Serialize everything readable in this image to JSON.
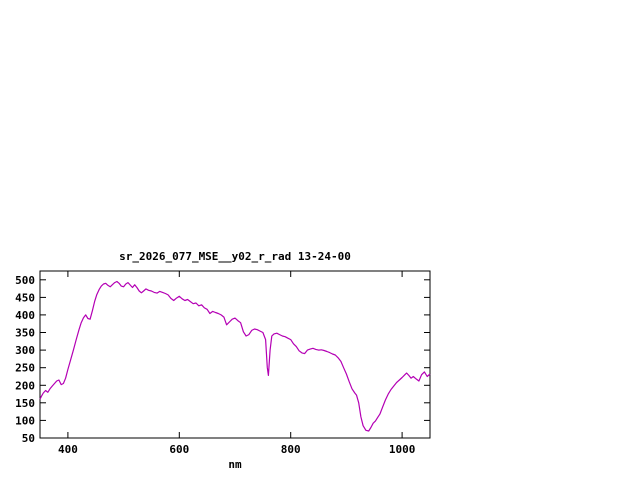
{
  "chart_data": {
    "type": "line",
    "title": "sr_2026_077_MSE__y02_r_rad 13-24-00",
    "xlabel": "nm",
    "ylabel": "",
    "xlim": [
      350,
      1050
    ],
    "ylim": [
      50,
      525
    ],
    "xticks": [
      400,
      600,
      800,
      1000
    ],
    "yticks": [
      50,
      100,
      150,
      200,
      250,
      300,
      350,
      400,
      450,
      500
    ],
    "grid": false,
    "legend": "none",
    "line_color": "#b400b4",
    "axis_color": "#000000",
    "points": [
      [
        350,
        160
      ],
      [
        353,
        170
      ],
      [
        356,
        178
      ],
      [
        360,
        185
      ],
      [
        364,
        180
      ],
      [
        368,
        190
      ],
      [
        372,
        198
      ],
      [
        376,
        205
      ],
      [
        380,
        212
      ],
      [
        384,
        215
      ],
      [
        388,
        202
      ],
      [
        392,
        205
      ],
      [
        396,
        220
      ],
      [
        400,
        245
      ],
      [
        405,
        272
      ],
      [
        410,
        300
      ],
      [
        415,
        330
      ],
      [
        420,
        358
      ],
      [
        424,
        378
      ],
      [
        428,
        392
      ],
      [
        432,
        400
      ],
      [
        436,
        390
      ],
      [
        440,
        388
      ],
      [
        444,
        412
      ],
      [
        448,
        438
      ],
      [
        452,
        458
      ],
      [
        456,
        472
      ],
      [
        460,
        482
      ],
      [
        464,
        488
      ],
      [
        468,
        490
      ],
      [
        472,
        484
      ],
      [
        476,
        480
      ],
      [
        480,
        486
      ],
      [
        484,
        492
      ],
      [
        488,
        495
      ],
      [
        492,
        490
      ],
      [
        496,
        482
      ],
      [
        500,
        480
      ],
      [
        504,
        488
      ],
      [
        508,
        492
      ],
      [
        512,
        485
      ],
      [
        516,
        478
      ],
      [
        520,
        486
      ],
      [
        524,
        478
      ],
      [
        528,
        468
      ],
      [
        532,
        463
      ],
      [
        536,
        468
      ],
      [
        540,
        474
      ],
      [
        545,
        470
      ],
      [
        550,
        468
      ],
      [
        555,
        464
      ],
      [
        560,
        462
      ],
      [
        565,
        467
      ],
      [
        570,
        464
      ],
      [
        575,
        461
      ],
      [
        580,
        457
      ],
      [
        585,
        447
      ],
      [
        590,
        441
      ],
      [
        595,
        448
      ],
      [
        600,
        453
      ],
      [
        605,
        446
      ],
      [
        610,
        441
      ],
      [
        615,
        444
      ],
      [
        620,
        438
      ],
      [
        625,
        432
      ],
      [
        630,
        434
      ],
      [
        635,
        426
      ],
      [
        640,
        429
      ],
      [
        645,
        420
      ],
      [
        650,
        416
      ],
      [
        655,
        404
      ],
      [
        660,
        410
      ],
      [
        665,
        407
      ],
      [
        670,
        404
      ],
      [
        675,
        400
      ],
      [
        680,
        394
      ],
      [
        685,
        372
      ],
      [
        690,
        380
      ],
      [
        695,
        388
      ],
      [
        700,
        391
      ],
      [
        705,
        384
      ],
      [
        710,
        378
      ],
      [
        715,
        352
      ],
      [
        720,
        340
      ],
      [
        725,
        344
      ],
      [
        730,
        356
      ],
      [
        735,
        360
      ],
      [
        740,
        358
      ],
      [
        745,
        354
      ],
      [
        750,
        350
      ],
      [
        755,
        330
      ],
      [
        758,
        250
      ],
      [
        760,
        228
      ],
      [
        763,
        300
      ],
      [
        766,
        340
      ],
      [
        770,
        346
      ],
      [
        775,
        348
      ],
      [
        780,
        344
      ],
      [
        785,
        340
      ],
      [
        790,
        338
      ],
      [
        795,
        334
      ],
      [
        800,
        330
      ],
      [
        805,
        318
      ],
      [
        810,
        310
      ],
      [
        815,
        298
      ],
      [
        820,
        292
      ],
      [
        825,
        290
      ],
      [
        830,
        300
      ],
      [
        835,
        303
      ],
      [
        840,
        305
      ],
      [
        845,
        302
      ],
      [
        850,
        300
      ],
      [
        855,
        301
      ],
      [
        860,
        299
      ],
      [
        865,
        296
      ],
      [
        870,
        293
      ],
      [
        875,
        289
      ],
      [
        880,
        286
      ],
      [
        885,
        278
      ],
      [
        890,
        268
      ],
      [
        895,
        250
      ],
      [
        900,
        232
      ],
      [
        905,
        210
      ],
      [
        910,
        190
      ],
      [
        915,
        178
      ],
      [
        918,
        172
      ],
      [
        922,
        150
      ],
      [
        926,
        110
      ],
      [
        930,
        85
      ],
      [
        935,
        72
      ],
      [
        940,
        70
      ],
      [
        944,
        80
      ],
      [
        948,
        92
      ],
      [
        952,
        98
      ],
      [
        956,
        108
      ],
      [
        960,
        118
      ],
      [
        965,
        138
      ],
      [
        970,
        158
      ],
      [
        975,
        175
      ],
      [
        980,
        188
      ],
      [
        985,
        198
      ],
      [
        990,
        208
      ],
      [
        995,
        215
      ],
      [
        1000,
        222
      ],
      [
        1005,
        230
      ],
      [
        1008,
        235
      ],
      [
        1012,
        228
      ],
      [
        1016,
        220
      ],
      [
        1020,
        225
      ],
      [
        1025,
        218
      ],
      [
        1030,
        212
      ],
      [
        1035,
        230
      ],
      [
        1040,
        238
      ],
      [
        1045,
        225
      ],
      [
        1050,
        232
      ]
    ]
  }
}
